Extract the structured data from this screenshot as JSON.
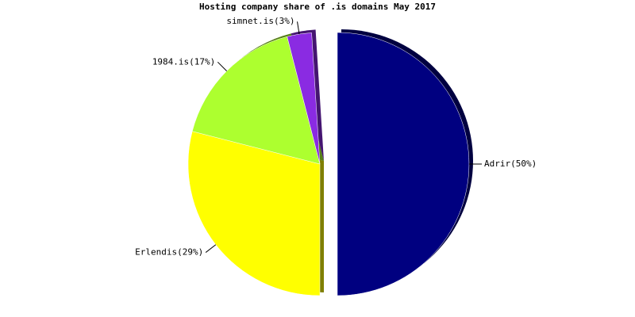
{
  "chart_data": {
    "type": "pie",
    "title": "Hosting company share of .is domains May 2017",
    "values": [
      50,
      29,
      17,
      3
    ],
    "value_labels": [
      "Adrir(50%)",
      "Erlendis(29%)",
      "1984.is(17%)",
      "simnet.is(3%)"
    ],
    "colors": [
      "#000080",
      "#ffff00",
      "#adff2f",
      "#8a2be2"
    ]
  }
}
